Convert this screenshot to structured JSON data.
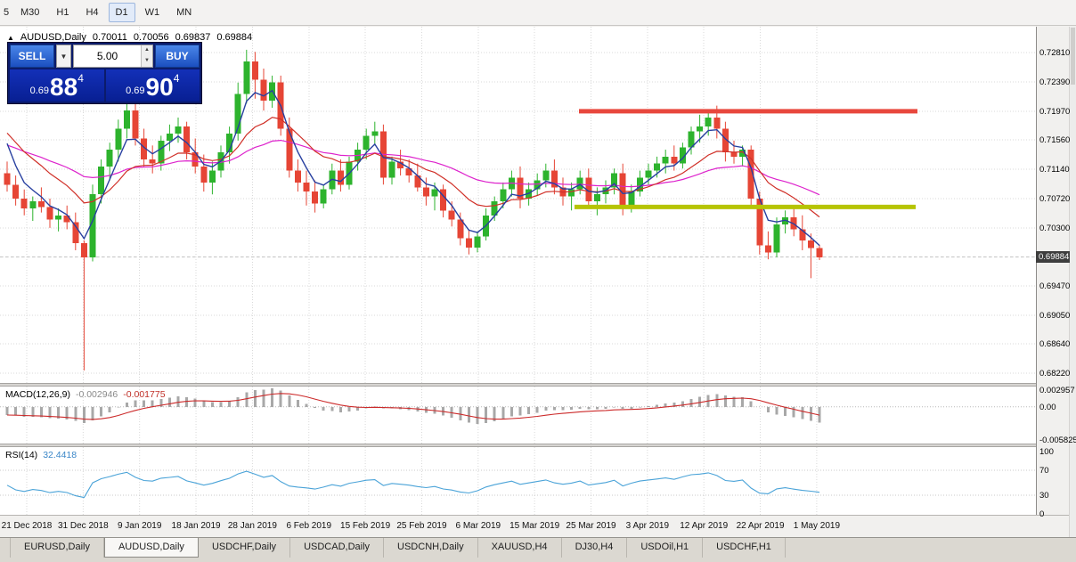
{
  "colors": {
    "up": "#2db32d",
    "down": "#e64535",
    "ma_fast": "#2840a0",
    "ma_mid": "#d03028",
    "ma_slow": "#dd22cc",
    "macd_hist": "#a8a8a8",
    "macd_signal": "#cc2a2a",
    "rsi_line": "#4aa3d8",
    "resistance": "#e8473d",
    "support": "#b6c404",
    "grid": "#d9d9d9",
    "price_badge_bg": "#3e3e3e"
  },
  "toolbar": {
    "timeframes": [
      {
        "label": "5",
        "active": false,
        "partial": true
      },
      {
        "label": "M30",
        "active": false
      },
      {
        "label": "H1",
        "active": false
      },
      {
        "label": "H4",
        "active": false
      },
      {
        "label": "D1",
        "active": true
      },
      {
        "label": "W1",
        "active": false
      },
      {
        "label": "MN",
        "active": false
      }
    ]
  },
  "chart_header": {
    "symbol_period": "AUDUSD,Daily",
    "open": "0.70011",
    "high": "0.70056",
    "low": "0.69837",
    "close": "0.69884"
  },
  "trade_panel": {
    "sell_label": "SELL",
    "buy_label": "BUY",
    "volume": "5.00",
    "sell_price": {
      "prefix": "0.69",
      "big": "88",
      "sup": "4"
    },
    "buy_price": {
      "prefix": "0.69",
      "big": "90",
      "sup": "4"
    }
  },
  "price_axis": {
    "labels": [
      "0.72810",
      "0.72390",
      "0.71970",
      "0.71560",
      "0.71140",
      "0.70720",
      "0.70300",
      "0.69470",
      "0.69050",
      "0.68640",
      "0.68220"
    ],
    "current": "0.69884"
  },
  "macd_panel": {
    "label": "MACD(12,26,9)",
    "value_main": "-0.002946",
    "value_signal": "-0.001775",
    "axis": [
      "0.002957",
      "0.00",
      "-0.005825"
    ]
  },
  "rsi_panel": {
    "label": "RSI(14)",
    "value": "32.4418",
    "axis": [
      "100",
      "70",
      "30",
      "0"
    ]
  },
  "time_axis": {
    "labels": [
      "21 Dec 2018",
      "31 Dec 2018",
      "9 Jan 2019",
      "18 Jan 2019",
      "28 Jan 2019",
      "6 Feb 2019",
      "15 Feb 2019",
      "25 Feb 2019",
      "6 Mar 2019",
      "15 Mar 2019",
      "25 Mar 2019",
      "3 Apr 2019",
      "12 Apr 2019",
      "22 Apr 2019",
      "1 May 2019"
    ]
  },
  "tabs": [
    {
      "label": "EURUSD,Daily",
      "active": false
    },
    {
      "label": "AUDUSD,Daily",
      "active": true
    },
    {
      "label": "USDCHF,Daily",
      "active": false
    },
    {
      "label": "USDCAD,Daily",
      "active": false
    },
    {
      "label": "USDCNH,Daily",
      "active": false
    },
    {
      "label": "XAUUSD,H4",
      "active": false
    },
    {
      "label": "DJ30,H4",
      "active": false
    },
    {
      "label": "USDOil,H1",
      "active": false
    },
    {
      "label": "USDCHF,H1",
      "active": false
    }
  ],
  "chart_data": {
    "type": "candlestick",
    "symbol": "AUDUSD",
    "period": "Daily",
    "last_ohlc": {
      "open": 0.70011,
      "high": 0.70056,
      "low": 0.69837,
      "close": 0.69884
    },
    "price_range": {
      "top": 0.7318,
      "bottom": 0.6808
    },
    "levels": {
      "resistance": 0.7197,
      "support": 0.706
    },
    "grid_prices": [
      0.7281,
      0.7239,
      0.7197,
      0.7156,
      0.7114,
      0.7072,
      0.703,
      0.69884,
      0.6947,
      0.6905,
      0.6864,
      0.6822
    ],
    "ma": {
      "fast_period": 4,
      "fast_seed": 0.719,
      "mid_period": 13,
      "mid_seed": 0.7178,
      "slow_period": 34,
      "slow_seed": 0.7152
    },
    "macd": {
      "fast": 12,
      "slow": 26,
      "signal": 9,
      "seed_fast": 0.71,
      "seed_slow": 0.7115,
      "scale_max": 0.0036,
      "scale_min": -0.0065,
      "last": -0.002946,
      "last_signal": -0.001775
    },
    "rsi": {
      "period": 14,
      "last": 32.4418,
      "levels": [
        70,
        30
      ]
    },
    "candles": [
      [
        0.7108,
        0.7125,
        0.7082,
        0.7092
      ],
      [
        0.7092,
        0.7105,
        0.7062,
        0.7072
      ],
      [
        0.7072,
        0.7085,
        0.7048,
        0.7058
      ],
      [
        0.7058,
        0.7075,
        0.704,
        0.7068
      ],
      [
        0.7068,
        0.7088,
        0.7052,
        0.706
      ],
      [
        0.706,
        0.7072,
        0.703,
        0.7042
      ],
      [
        0.7042,
        0.7058,
        0.7025,
        0.7048
      ],
      [
        0.7048,
        0.7062,
        0.7028,
        0.7038
      ],
      [
        0.7038,
        0.7052,
        0.6998,
        0.7008
      ],
      [
        0.7008,
        0.7012,
        0.6826,
        0.6988
      ],
      [
        0.6988,
        0.7092,
        0.6982,
        0.7078
      ],
      [
        0.7078,
        0.7128,
        0.7065,
        0.7118
      ],
      [
        0.7118,
        0.7152,
        0.7098,
        0.7142
      ],
      [
        0.7142,
        0.7185,
        0.7125,
        0.7172
      ],
      [
        0.7172,
        0.7212,
        0.7158,
        0.7198
      ],
      [
        0.7198,
        0.7215,
        0.7148,
        0.7158
      ],
      [
        0.7158,
        0.7172,
        0.7118,
        0.7128
      ],
      [
        0.7128,
        0.7148,
        0.7108,
        0.7122
      ],
      [
        0.7122,
        0.7162,
        0.7112,
        0.7155
      ],
      [
        0.7155,
        0.7178,
        0.714,
        0.7165
      ],
      [
        0.7165,
        0.7188,
        0.7152,
        0.7175
      ],
      [
        0.7175,
        0.7182,
        0.7128,
        0.7138
      ],
      [
        0.7138,
        0.7158,
        0.7108,
        0.7118
      ],
      [
        0.7118,
        0.7135,
        0.7082,
        0.7095
      ],
      [
        0.7095,
        0.7125,
        0.7078,
        0.7112
      ],
      [
        0.7112,
        0.7148,
        0.7102,
        0.7138
      ],
      [
        0.7138,
        0.7175,
        0.7122,
        0.7165
      ],
      [
        0.7165,
        0.7238,
        0.7155,
        0.7222
      ],
      [
        0.7222,
        0.7285,
        0.7208,
        0.7268
      ],
      [
        0.7268,
        0.7282,
        0.7215,
        0.7242
      ],
      [
        0.7242,
        0.7258,
        0.7198,
        0.7212
      ],
      [
        0.7212,
        0.7248,
        0.7202,
        0.7238
      ],
      [
        0.7238,
        0.7248,
        0.7162,
        0.7172
      ],
      [
        0.7172,
        0.7188,
        0.7102,
        0.7112
      ],
      [
        0.7112,
        0.7128,
        0.7082,
        0.7095
      ],
      [
        0.7095,
        0.7112,
        0.7062,
        0.7082
      ],
      [
        0.7082,
        0.7098,
        0.7052,
        0.7065
      ],
      [
        0.7065,
        0.7092,
        0.7058,
        0.7085
      ],
      [
        0.7085,
        0.7122,
        0.7078,
        0.7112
      ],
      [
        0.7112,
        0.7128,
        0.7082,
        0.7092
      ],
      [
        0.7092,
        0.7132,
        0.7085,
        0.7125
      ],
      [
        0.7125,
        0.7152,
        0.7112,
        0.7142
      ],
      [
        0.7142,
        0.7172,
        0.7128,
        0.7162
      ],
      [
        0.7162,
        0.7182,
        0.7148,
        0.7168
      ],
      [
        0.7168,
        0.7178,
        0.7092,
        0.7102
      ],
      [
        0.7102,
        0.7132,
        0.7092,
        0.7125
      ],
      [
        0.7125,
        0.7142,
        0.7105,
        0.7115
      ],
      [
        0.7115,
        0.7128,
        0.7095,
        0.7105
      ],
      [
        0.7105,
        0.7122,
        0.7082,
        0.7088
      ],
      [
        0.7088,
        0.7102,
        0.7062,
        0.7075
      ],
      [
        0.7075,
        0.7095,
        0.7055,
        0.7085
      ],
      [
        0.7085,
        0.7092,
        0.7045,
        0.7055
      ],
      [
        0.7055,
        0.7068,
        0.7032,
        0.7042
      ],
      [
        0.7042,
        0.7052,
        0.7005,
        0.7015
      ],
      [
        0.7015,
        0.7028,
        0.6992,
        0.7002
      ],
      [
        0.7002,
        0.7025,
        0.6995,
        0.7018
      ],
      [
        0.7018,
        0.7058,
        0.7012,
        0.7048
      ],
      [
        0.7048,
        0.7075,
        0.704,
        0.7068
      ],
      [
        0.7068,
        0.7095,
        0.7058,
        0.7085
      ],
      [
        0.7085,
        0.7112,
        0.7075,
        0.7102
      ],
      [
        0.7102,
        0.7118,
        0.7058,
        0.7072
      ],
      [
        0.7072,
        0.7095,
        0.7062,
        0.7085
      ],
      [
        0.7085,
        0.7108,
        0.7076,
        0.7098
      ],
      [
        0.7098,
        0.7122,
        0.7088,
        0.7112
      ],
      [
        0.7112,
        0.7128,
        0.7078,
        0.7088
      ],
      [
        0.7088,
        0.7102,
        0.7062,
        0.7075
      ],
      [
        0.7075,
        0.7095,
        0.7055,
        0.7085
      ],
      [
        0.7085,
        0.7112,
        0.7078,
        0.7102
      ],
      [
        0.7102,
        0.7115,
        0.7058,
        0.7068
      ],
      [
        0.7068,
        0.7088,
        0.7048,
        0.7078
      ],
      [
        0.7078,
        0.7098,
        0.7065,
        0.7088
      ],
      [
        0.7088,
        0.7115,
        0.7078,
        0.7108
      ],
      [
        0.7108,
        0.7122,
        0.7048,
        0.7058
      ],
      [
        0.7058,
        0.7092,
        0.7052,
        0.7082
      ],
      [
        0.7082,
        0.7112,
        0.7075,
        0.7102
      ],
      [
        0.7102,
        0.7122,
        0.7092,
        0.7112
      ],
      [
        0.7112,
        0.7132,
        0.7102,
        0.7122
      ],
      [
        0.7122,
        0.7142,
        0.7108,
        0.7132
      ],
      [
        0.7132,
        0.7148,
        0.7112,
        0.7122
      ],
      [
        0.7122,
        0.7152,
        0.7115,
        0.7145
      ],
      [
        0.7145,
        0.7175,
        0.7135,
        0.7168
      ],
      [
        0.7168,
        0.7192,
        0.7152,
        0.7175
      ],
      [
        0.7175,
        0.7198,
        0.7162,
        0.7188
      ],
      [
        0.7188,
        0.7205,
        0.7158,
        0.7172
      ],
      [
        0.7172,
        0.7182,
        0.7125,
        0.7138
      ],
      [
        0.7138,
        0.7155,
        0.7122,
        0.7132
      ],
      [
        0.7132,
        0.7148,
        0.7118,
        0.7142
      ],
      [
        0.7142,
        0.7148,
        0.7062,
        0.7072
      ],
      [
        0.7072,
        0.7082,
        0.6992,
        0.7005
      ],
      [
        0.7005,
        0.7025,
        0.6985,
        0.6995
      ],
      [
        0.6995,
        0.7045,
        0.6988,
        0.7035
      ],
      [
        0.7035,
        0.7055,
        0.7022,
        0.7045
      ],
      [
        0.7045,
        0.7058,
        0.7018,
        0.7028
      ],
      [
        0.7028,
        0.7048,
        0.6998,
        0.7012
      ],
      [
        0.7012,
        0.7022,
        0.6958,
        0.7001
      ],
      [
        0.7001,
        0.7006,
        0.6984,
        0.6988
      ]
    ]
  }
}
